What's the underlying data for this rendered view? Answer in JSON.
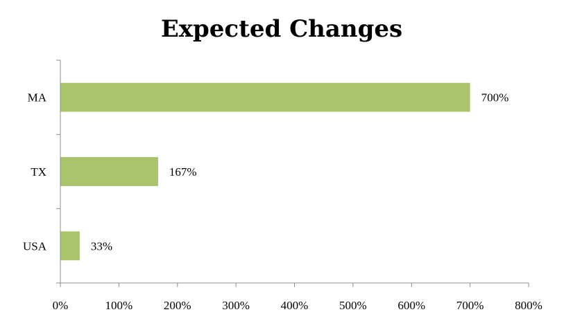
{
  "chart_data": {
    "type": "bar",
    "orientation": "horizontal",
    "title": "Expected Changes",
    "categories": [
      "MA",
      "TX",
      "USA"
    ],
    "values": [
      700,
      167,
      33
    ],
    "data_labels": [
      "700%",
      "167%",
      "33%"
    ],
    "xlim": [
      0,
      800
    ],
    "x_ticks": [
      0,
      100,
      200,
      300,
      400,
      500,
      600,
      700,
      800
    ],
    "x_tick_labels": [
      "0%",
      "100%",
      "200%",
      "300%",
      "400%",
      "500%",
      "600%",
      "700%",
      "800%"
    ],
    "xlabel": "",
    "ylabel": "",
    "grid": false,
    "bar_color": "#a9c46b"
  }
}
